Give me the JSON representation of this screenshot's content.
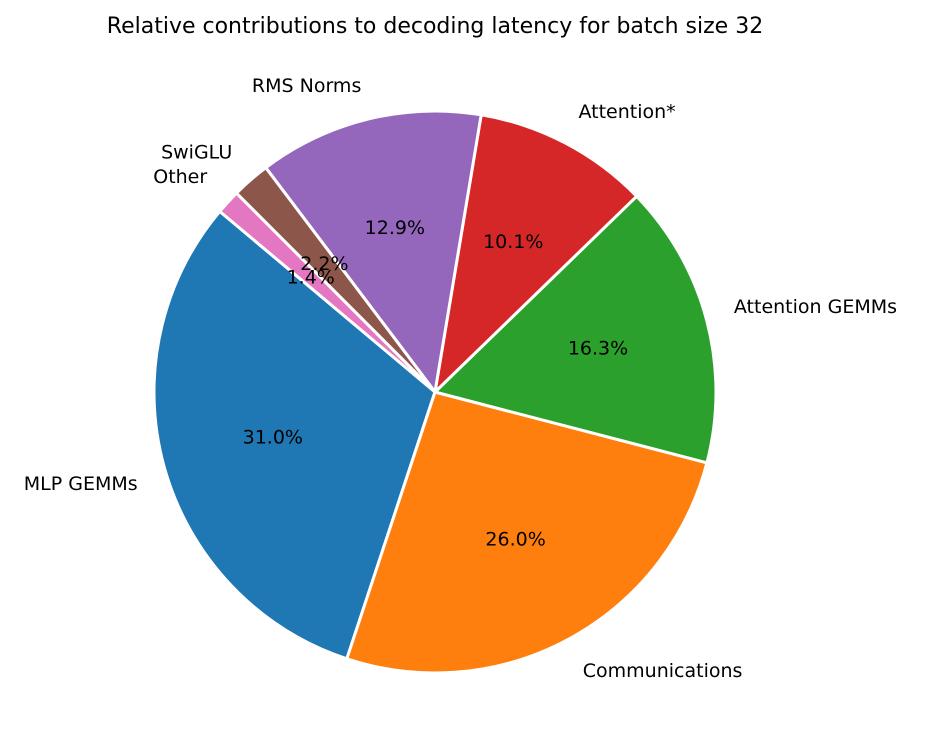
{
  "chart_data": {
    "type": "pie",
    "title": "Relative contributions to decoding latency for batch size 32",
    "start_angle_deg": 140,
    "direction": "counterclockwise",
    "slices": [
      {
        "label": "MLP GEMMs",
        "value": 31.0,
        "pct_label": "31.0%",
        "color": "#1f77b4"
      },
      {
        "label": "Communications",
        "value": 26.0,
        "pct_label": "26.0%",
        "color": "#ff7f0e"
      },
      {
        "label": "Attention GEMMs",
        "value": 16.3,
        "pct_label": "16.3%",
        "color": "#2ca02c"
      },
      {
        "label": "Attention*",
        "value": 10.1,
        "pct_label": "10.1%",
        "color": "#d62728"
      },
      {
        "label": "RMS Norms",
        "value": 12.9,
        "pct_label": "12.9%",
        "color": "#9467bd"
      },
      {
        "label": "SwiGLU",
        "value": 2.2,
        "pct_label": "2.2%",
        "color": "#8c564b"
      },
      {
        "label": "Other",
        "value": 1.4,
        "pct_label": "1.4%",
        "color": "#e377c2"
      }
    ]
  }
}
